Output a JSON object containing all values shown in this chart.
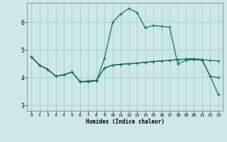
{
  "xlabel": "Humidex (Indice chaleur)",
  "bg_color": "#cce8e8",
  "line_color": "#1a7060",
  "grid_color": "#aacccc",
  "xlim": [
    -0.5,
    23.5
  ],
  "ylim": [
    2.8,
    6.7
  ],
  "yticks": [
    3,
    4,
    5,
    6
  ],
  "xticks": [
    0,
    1,
    2,
    3,
    4,
    5,
    6,
    7,
    8,
    9,
    10,
    11,
    12,
    13,
    14,
    15,
    16,
    17,
    18,
    19,
    20,
    21,
    22,
    23
  ],
  "line1_x": [
    0,
    1,
    2,
    3,
    4,
    5,
    6,
    7,
    8,
    9,
    10,
    11,
    12,
    13,
    14,
    15,
    16,
    17,
    18,
    19,
    20,
    21,
    22,
    23
  ],
  "line1_y": [
    4.75,
    4.45,
    4.3,
    4.05,
    4.1,
    4.2,
    3.85,
    3.88,
    3.9,
    4.35,
    4.45,
    4.48,
    4.5,
    4.52,
    4.55,
    4.58,
    4.6,
    4.62,
    4.65,
    4.67,
    4.68,
    4.65,
    4.62,
    4.6
  ],
  "line2_x": [
    0,
    1,
    2,
    3,
    4,
    5,
    6,
    7,
    8,
    9,
    10,
    11,
    12,
    13,
    14,
    15,
    16,
    17,
    18,
    19,
    20,
    21,
    22,
    23
  ],
  "line2_y": [
    4.75,
    4.45,
    4.3,
    4.05,
    4.1,
    4.2,
    3.85,
    3.85,
    3.88,
    4.7,
    6.0,
    6.3,
    6.5,
    6.35,
    5.8,
    5.88,
    5.85,
    5.82,
    4.5,
    4.62,
    4.65,
    4.62,
    4.05,
    4.0
  ],
  "line3_x": [
    0,
    1,
    2,
    3,
    4,
    5,
    6,
    7,
    8,
    9,
    10,
    11,
    12,
    13,
    14,
    15,
    16,
    17,
    18,
    19,
    20,
    21,
    22,
    23
  ],
  "line3_y": [
    4.75,
    4.45,
    4.3,
    4.05,
    4.1,
    4.2,
    3.85,
    3.85,
    3.88,
    4.35,
    4.45,
    4.48,
    4.5,
    4.52,
    4.55,
    4.58,
    4.6,
    4.62,
    4.65,
    4.67,
    4.68,
    4.65,
    4.05,
    3.38
  ]
}
